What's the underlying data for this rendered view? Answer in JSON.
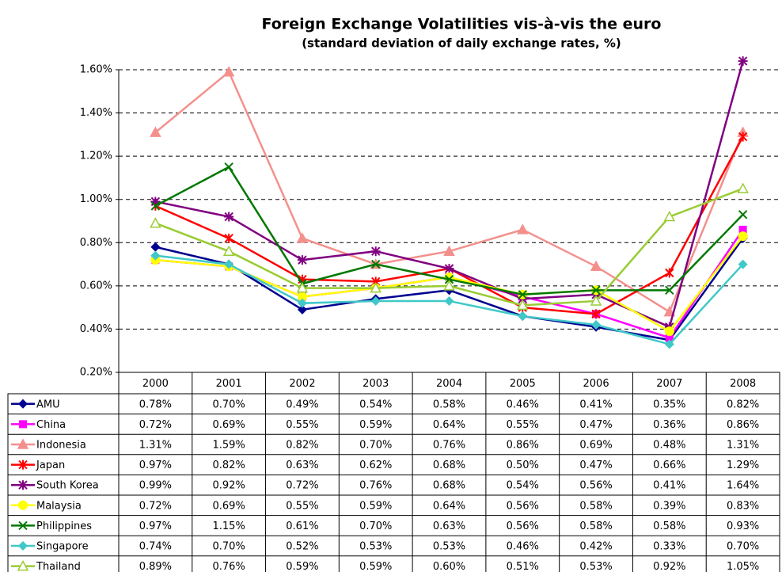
{
  "chart_data": {
    "type": "line",
    "title": "Foreign Exchange Volatilities vis-à-vis the euro",
    "subtitle": "(standard deviation of daily exchange rates, %)",
    "categories": [
      "2000",
      "2001",
      "2002",
      "2003",
      "2004",
      "2005",
      "2006",
      "2007",
      "2008"
    ],
    "ylim": [
      0.2,
      1.6
    ],
    "yticks": [
      {
        "value": 0.2,
        "label": "0.20%"
      },
      {
        "value": 0.4,
        "label": "0.40%"
      },
      {
        "value": 0.6,
        "label": "0.60%"
      },
      {
        "value": 0.8,
        "label": "0.80%"
      },
      {
        "value": 1.0,
        "label": "1.00%"
      },
      {
        "value": 1.2,
        "label": "1.20%"
      },
      {
        "value": 1.4,
        "label": "1.40%"
      },
      {
        "value": 1.6,
        "label": "1.60%"
      }
    ],
    "grid": true,
    "series": [
      {
        "name": "AMU",
        "color": "#000090",
        "marker": "diamond",
        "values": [
          0.78,
          0.7,
          0.49,
          0.54,
          0.58,
          0.46,
          0.41,
          0.35,
          0.82
        ],
        "value_labels": [
          "0.78%",
          "0.70%",
          "0.49%",
          "0.54%",
          "0.58%",
          "0.46%",
          "0.41%",
          "0.35%",
          "0.82%"
        ]
      },
      {
        "name": "China",
        "color": "#ff00ff",
        "marker": "square",
        "values": [
          0.72,
          0.69,
          0.55,
          0.59,
          0.64,
          0.55,
          0.47,
          0.36,
          0.86
        ],
        "value_labels": [
          "0.72%",
          "0.69%",
          "0.55%",
          "0.59%",
          "0.64%",
          "0.55%",
          "0.47%",
          "0.36%",
          "0.86%"
        ]
      },
      {
        "name": "Indonesia",
        "color": "#f4908c",
        "marker": "triangle",
        "values": [
          1.31,
          1.59,
          0.82,
          0.7,
          0.76,
          0.86,
          0.69,
          0.48,
          1.31
        ],
        "value_labels": [
          "1.31%",
          "1.59%",
          "0.82%",
          "0.70%",
          "0.76%",
          "0.86%",
          "0.69%",
          "0.48%",
          "1.31%"
        ]
      },
      {
        "name": "Japan",
        "color": "#ff0000",
        "marker": "asterisk",
        "values": [
          0.97,
          0.82,
          0.63,
          0.62,
          0.68,
          0.5,
          0.47,
          0.66,
          1.29
        ],
        "value_labels": [
          "0.97%",
          "0.82%",
          "0.63%",
          "0.62%",
          "0.68%",
          "0.50%",
          "0.47%",
          "0.66%",
          "1.29%"
        ]
      },
      {
        "name": "South Korea",
        "color": "#800080",
        "marker": "star",
        "values": [
          0.99,
          0.92,
          0.72,
          0.76,
          0.68,
          0.54,
          0.56,
          0.41,
          1.64
        ],
        "value_labels": [
          "0.99%",
          "0.92%",
          "0.72%",
          "0.76%",
          "0.68%",
          "0.54%",
          "0.56%",
          "0.41%",
          "1.64%"
        ]
      },
      {
        "name": "Malaysia",
        "color": "#ffff00",
        "marker": "circle",
        "values": [
          0.72,
          0.69,
          0.55,
          0.59,
          0.64,
          0.56,
          0.58,
          0.39,
          0.83
        ],
        "value_labels": [
          "0.72%",
          "0.69%",
          "0.55%",
          "0.59%",
          "0.64%",
          "0.56%",
          "0.58%",
          "0.39%",
          "0.83%"
        ]
      },
      {
        "name": "Philippines",
        "color": "#007800",
        "marker": "x",
        "values": [
          0.97,
          1.15,
          0.61,
          0.7,
          0.63,
          0.56,
          0.58,
          0.58,
          0.93
        ],
        "value_labels": [
          "0.97%",
          "1.15%",
          "0.61%",
          "0.70%",
          "0.63%",
          "0.56%",
          "0.58%",
          "0.58%",
          "0.93%"
        ]
      },
      {
        "name": "Singapore",
        "color": "#40c8c8",
        "marker": "diamond",
        "values": [
          0.74,
          0.7,
          0.52,
          0.53,
          0.53,
          0.46,
          0.42,
          0.33,
          0.7
        ],
        "value_labels": [
          "0.74%",
          "0.70%",
          "0.52%",
          "0.53%",
          "0.53%",
          "0.46%",
          "0.42%",
          "0.33%",
          "0.70%"
        ]
      },
      {
        "name": "Thailand",
        "color": "#99cc33",
        "marker": "triangle-open",
        "values": [
          0.89,
          0.76,
          0.59,
          0.59,
          0.6,
          0.51,
          0.53,
          0.92,
          1.05
        ],
        "value_labels": [
          "0.89%",
          "0.76%",
          "0.59%",
          "0.59%",
          "0.60%",
          "0.51%",
          "0.53%",
          "0.92%",
          "1.05%"
        ]
      }
    ]
  }
}
